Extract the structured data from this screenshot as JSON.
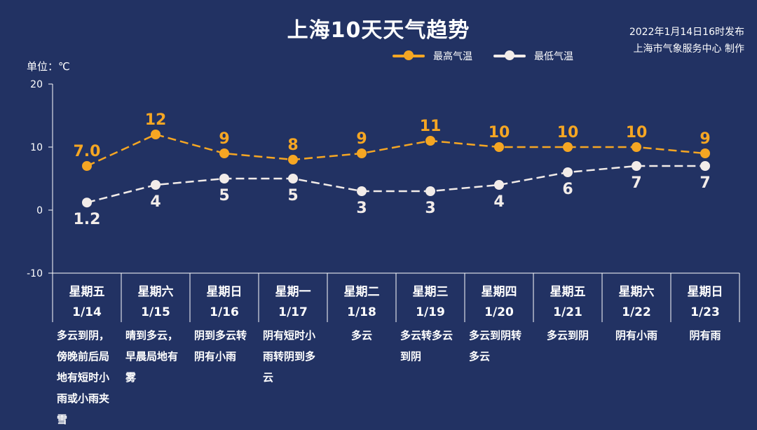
{
  "title": "上海10天天气趋势",
  "publish": {
    "time": "2022年1月14日16时发布",
    "agency": "上海市气象服务中心 制作"
  },
  "unit_label": "单位：℃",
  "legend": [
    {
      "label": "最高气温",
      "color": "#f5a623"
    },
    {
      "label": "最低气温",
      "color": "#f2ece9"
    }
  ],
  "days": [
    {
      "weekday": "星期五",
      "date": "1/14",
      "weather": "多云到阴，傍晚前后局地有短时小雨或小雨夹雪"
    },
    {
      "weekday": "星期六",
      "date": "1/15",
      "weather": "晴到多云，早晨局地有雾"
    },
    {
      "weekday": "星期日",
      "date": "1/16",
      "weather": "阴到多云转阴有小雨"
    },
    {
      "weekday": "星期一",
      "date": "1/17",
      "weather": "阴有短时小雨转阴到多云"
    },
    {
      "weekday": "星期二",
      "date": "1/18",
      "weather": "多云"
    },
    {
      "weekday": "星期三",
      "date": "1/19",
      "weather": "多云转多云到阴"
    },
    {
      "weekday": "星期四",
      "date": "1/20",
      "weather": "多云到阴转多云"
    },
    {
      "weekday": "星期五",
      "date": "1/21",
      "weather": "多云到阴"
    },
    {
      "weekday": "星期六",
      "date": "1/22",
      "weather": "阴有小雨"
    },
    {
      "weekday": "星期日",
      "date": "1/23",
      "weather": "阴有雨"
    }
  ],
  "chart_data": {
    "type": "line",
    "title": "上海10天天气趋势",
    "categories": [
      "1/14",
      "1/15",
      "1/16",
      "1/17",
      "1/18",
      "1/19",
      "1/20",
      "1/21",
      "1/22",
      "1/23"
    ],
    "ylabel": "单位：℃",
    "ylim": [
      -10,
      20
    ],
    "yticks": [
      20,
      10,
      0,
      -10
    ],
    "grid": false,
    "legend_position": "top",
    "series": [
      {
        "name": "最高气温",
        "color": "#f5a623",
        "values": [
          7.0,
          12,
          9,
          8,
          9,
          11,
          10,
          10,
          10,
          9
        ],
        "labels": [
          "7.0",
          "12",
          "9",
          "8",
          "9",
          "11",
          "10",
          "10",
          "10",
          "9"
        ],
        "label_position": "above"
      },
      {
        "name": "最低气温",
        "color": "#f2ece9",
        "values": [
          1.2,
          4,
          5,
          5,
          3,
          3,
          4,
          6,
          7,
          7
        ],
        "labels": [
          "1.2",
          "4",
          "5",
          "5",
          "3",
          "3",
          "4",
          "6",
          "7",
          "7"
        ],
        "label_position": "below"
      }
    ]
  }
}
